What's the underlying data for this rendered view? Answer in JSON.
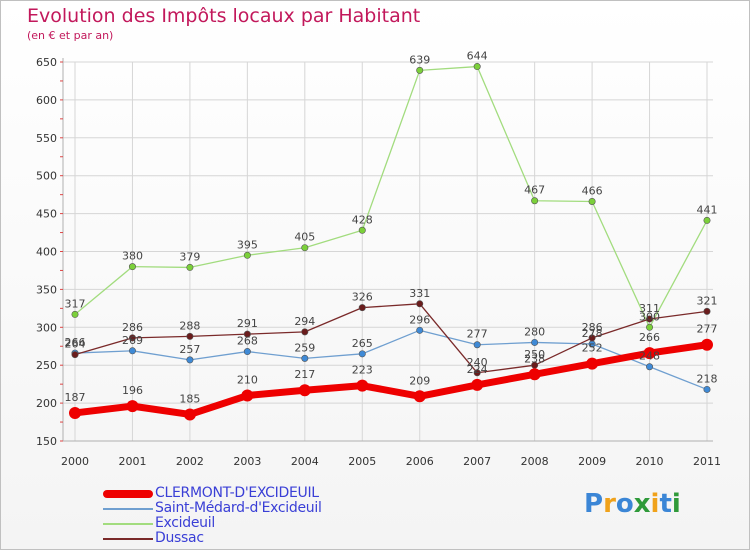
{
  "title": "Evolution des Impôts locaux par Habitant",
  "subtitle": "(en € et par an)",
  "chart_data": {
    "type": "line",
    "title": "Evolution des Impôts locaux par Habitant",
    "subtitle": "(en € et par an)",
    "categories": [
      "2000",
      "2001",
      "2002",
      "2003",
      "2004",
      "2005",
      "2006",
      "2007",
      "2008",
      "2009",
      "2010",
      "2011"
    ],
    "ylim": [
      150,
      650
    ],
    "yticks": [
      150,
      200,
      250,
      300,
      350,
      400,
      450,
      500,
      550,
      600,
      650
    ],
    "grid": true,
    "legend_position": "bottom-left",
    "series": [
      {
        "name": "CLERMONT-D'EXCIDEUIL",
        "color": "#ee0000",
        "values": [
          187,
          196,
          185,
          210,
          217,
          223,
          209,
          224,
          238,
          252,
          266,
          277
        ]
      },
      {
        "name": "Saint-Médard-d'Excideuil",
        "color": "#6f9fd0",
        "values": [
          266,
          269,
          257,
          268,
          259,
          265,
          296,
          277,
          280,
          278,
          248,
          218
        ]
      },
      {
        "name": "Excideuil",
        "color": "#a2dc7e",
        "values": [
          317,
          380,
          379,
          395,
          405,
          428,
          639,
          644,
          467,
          466,
          300,
          441
        ]
      },
      {
        "name": "Dussac",
        "color": "#7a2a2a",
        "values": [
          264,
          286,
          288,
          291,
          294,
          326,
          331,
          240,
          250,
          286,
          311,
          321
        ]
      }
    ],
    "data_labels": [
      [
        "187",
        "196",
        "185",
        "210",
        "217",
        "223",
        "209",
        "224",
        "238",
        "252",
        "266",
        "277"
      ],
      [
        "266",
        "269",
        "257",
        "268",
        "259",
        "265",
        "296",
        "277",
        "280",
        "278",
        "248",
        "218"
      ],
      [
        "317",
        "380",
        "379",
        "395",
        "405",
        "428",
        "639",
        "644",
        "467",
        "466",
        "300",
        "441"
      ],
      [
        "264",
        "286",
        "288",
        "291",
        "294",
        "326",
        "331",
        "240",
        "250",
        "286",
        "311",
        "321"
      ]
    ]
  },
  "legend": {
    "items": [
      "CLERMONT-D'EXCIDEUIL",
      "Saint-Médard-d'Excideuil",
      "Excideuil",
      "Dussac"
    ]
  },
  "logo": {
    "letters": [
      "P",
      "r",
      "o",
      "x",
      "i",
      "t",
      "i"
    ],
    "colors": [
      "#3b86d6",
      "#f0a21b",
      "#3b86d6",
      "#2f9a3a",
      "#f0a21b",
      "#3b86d6",
      "#2f9a3a"
    ]
  }
}
